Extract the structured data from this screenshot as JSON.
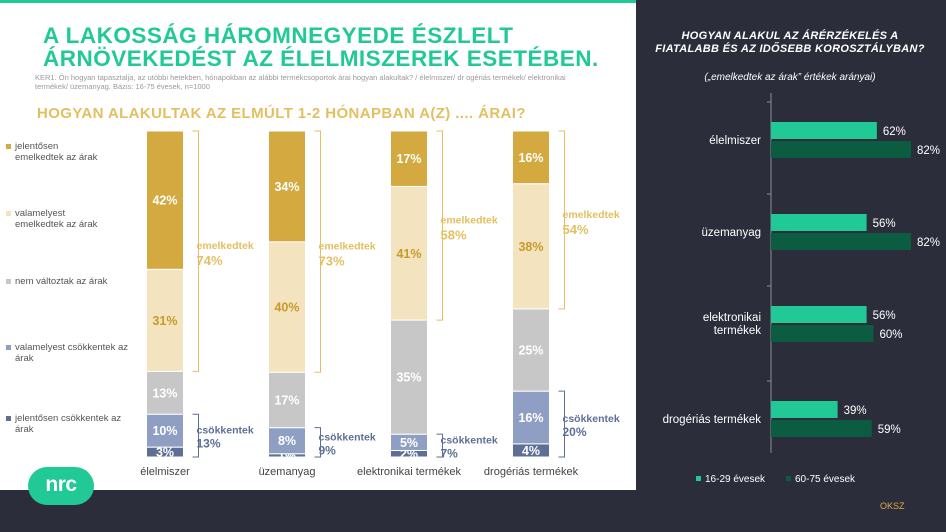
{
  "title": "A LAKOSSÁG HÁROMNEGYEDE ÉSZLELT ÁRNÖVEKEDÉST AZ ÉLELMISZEREK ESETÉBEN.",
  "note": "KER1. Ön hogyan tapasztalja, az utóbbi hetekben, hónapokban az alábbi termékcsoportok árai hogyan alakultak? / élelmiszer/ dr ogériás termékek/ elektronikai termékek/ üzemanyag. Bázis: 16-75 évesek, n=1000",
  "subtitle": "HOGYAN ALAKULTAK AZ ELMÚLT 1-2 HÓNAPBAN A(Z) .... ÁRAI?",
  "legend": [
    {
      "label": "jelentősen emelkedtek az árak",
      "color": "#d4a93f"
    },
    {
      "label": "valamelyest emelkedtek az árak",
      "color": "#f3e3bf"
    },
    {
      "label": "nem változtak az árak",
      "color": "#c7c7c7"
    },
    {
      "label": "valamelyest csökkentek az árak",
      "color": "#8f9fc4"
    },
    {
      "label": "jelentősen csökkentek az árak",
      "color": "#5e6f96"
    }
  ],
  "logo": "nrc",
  "oksz": "OKSZ",
  "right": {
    "title": "HOGYAN ALAKUL AZ  ÁRÉRZÉKELÉS A FIATALABB ÉS AZ IDŐSEBB KOROSZTÁLYBAN?",
    "subtitle": "(„emelkedtek az árak” értékek arányai)"
  },
  "chart_data": [
    {
      "type": "bar",
      "stacked": true,
      "categories": [
        "élelmiszer",
        "üzemanyag",
        "elektronikai termékek",
        "drogériás termékek"
      ],
      "series": [
        {
          "name": "jelentősen csökkentek az árak",
          "values": [
            3,
            1,
            2,
            4
          ],
          "labels": [
            "3%",
            "1%",
            "2%",
            "4%"
          ],
          "color": "#5e6f96"
        },
        {
          "name": "valamelyest csökkentek az árak",
          "values": [
            10,
            8,
            5,
            16
          ],
          "labels": [
            "10%",
            "8%",
            "5%",
            "16%"
          ],
          "color": "#8f9fc4"
        },
        {
          "name": "nem változtak az árak",
          "values": [
            13,
            17,
            35,
            25
          ],
          "labels": [
            "13%",
            "17%",
            "35%",
            "25%"
          ],
          "color": "#c7c7c7"
        },
        {
          "name": "valamelyest emelkedtek az árak",
          "values": [
            31,
            40,
            41,
            38
          ],
          "labels": [
            "31%",
            "40%",
            "41%",
            "38%"
          ],
          "color": "#f3e3bf"
        },
        {
          "name": "jelentősen emelkedtek az árak",
          "values": [
            42,
            34,
            17,
            16
          ],
          "labels": [
            "42%",
            "34%",
            "17%",
            "16%"
          ],
          "color": "#d4a93f"
        }
      ],
      "groups": {
        "up": {
          "label": "emelkedtek",
          "values": [
            "74%",
            "73%",
            "58%",
            "54%"
          ],
          "color": "#e3bf61"
        },
        "down": {
          "label": "csökkentek",
          "values": [
            "13%",
            "9%",
            "7%",
            "20%"
          ],
          "color": "#5e6f96"
        }
      }
    },
    {
      "type": "bar",
      "orientation": "horizontal",
      "categories": [
        "élelmiszer",
        "üzemanyag",
        "elektronikai termékek",
        "drogériás termékek"
      ],
      "series": [
        {
          "name": "16-29 évesek",
          "values": [
            62,
            56,
            56,
            39
          ],
          "labels": [
            "62%",
            "56%",
            "56%",
            "39%"
          ],
          "color": "#21c996"
        },
        {
          "name": "60-75 évesek",
          "values": [
            82,
            82,
            60,
            59
          ],
          "labels": [
            "82%",
            "82%",
            "60%",
            "59%"
          ],
          "color": "#0b5c40"
        }
      ],
      "xlim": [
        0,
        100
      ]
    }
  ]
}
